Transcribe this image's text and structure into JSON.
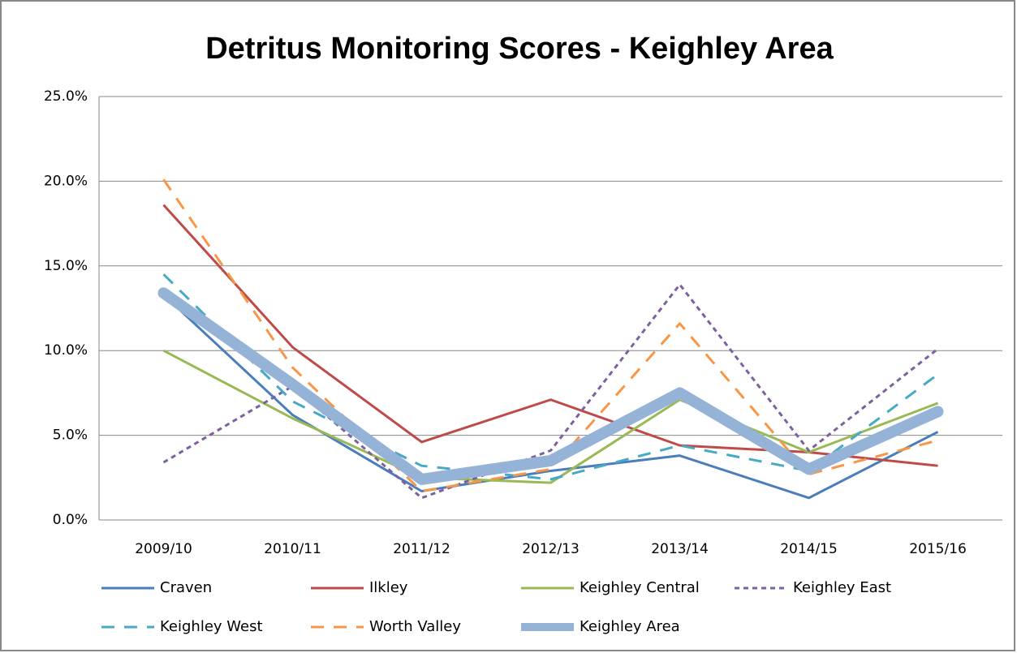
{
  "chart_data": {
    "type": "line",
    "title": "Detritus Monitoring Scores - Keighley Area",
    "categories": [
      "2009/10",
      "2010/11",
      "2011/12",
      "2012/13",
      "2013/14",
      "2014/15",
      "2015/16"
    ],
    "series": [
      {
        "name": "Craven",
        "color": "#4a7ebb",
        "dash": "solid",
        "width": 3,
        "values": [
          13.3,
          6.2,
          1.7,
          2.9,
          3.8,
          1.3,
          5.2
        ]
      },
      {
        "name": "Ilkley",
        "color": "#be4b48",
        "dash": "solid",
        "width": 3,
        "values": [
          18.6,
          10.2,
          4.6,
          7.1,
          4.4,
          4.0,
          3.2
        ]
      },
      {
        "name": "Keighley Central",
        "color": "#98b954",
        "dash": "solid",
        "width": 3,
        "values": [
          10.0,
          6.0,
          2.5,
          2.2,
          7.1,
          4.0,
          6.9
        ]
      },
      {
        "name": "Keighley East",
        "color": "#7d60a0",
        "dash": "short",
        "width": 3,
        "values": [
          3.4,
          7.9,
          1.3,
          4.1,
          13.9,
          4.1,
          10.1
        ]
      },
      {
        "name": "Keighley West",
        "color": "#46aac5",
        "dash": "long",
        "width": 3,
        "values": [
          14.5,
          7.0,
          3.2,
          2.4,
          4.4,
          2.9,
          8.6
        ]
      },
      {
        "name": "Worth Valley",
        "color": "#f79646",
        "dash": "long",
        "width": 3,
        "values": [
          20.1,
          9.0,
          1.7,
          3.0,
          11.6,
          2.7,
          4.7
        ]
      },
      {
        "name": "Keighley Area",
        "color": "#95b3d7",
        "dash": "solid",
        "width": 14,
        "values": [
          13.4,
          8.0,
          2.4,
          3.5,
          7.5,
          3.0,
          6.4
        ]
      }
    ],
    "ylim": [
      0,
      25
    ],
    "yticks": [
      {
        "value": 0,
        "label": "0.0%"
      },
      {
        "value": 5,
        "label": "5.0%"
      },
      {
        "value": 10,
        "label": "10.0%"
      },
      {
        "value": 15,
        "label": "15.0%"
      },
      {
        "value": 20,
        "label": "20.0%"
      },
      {
        "value": 25,
        "label": "25.0%"
      }
    ],
    "grid": true,
    "legend": "bottom"
  }
}
